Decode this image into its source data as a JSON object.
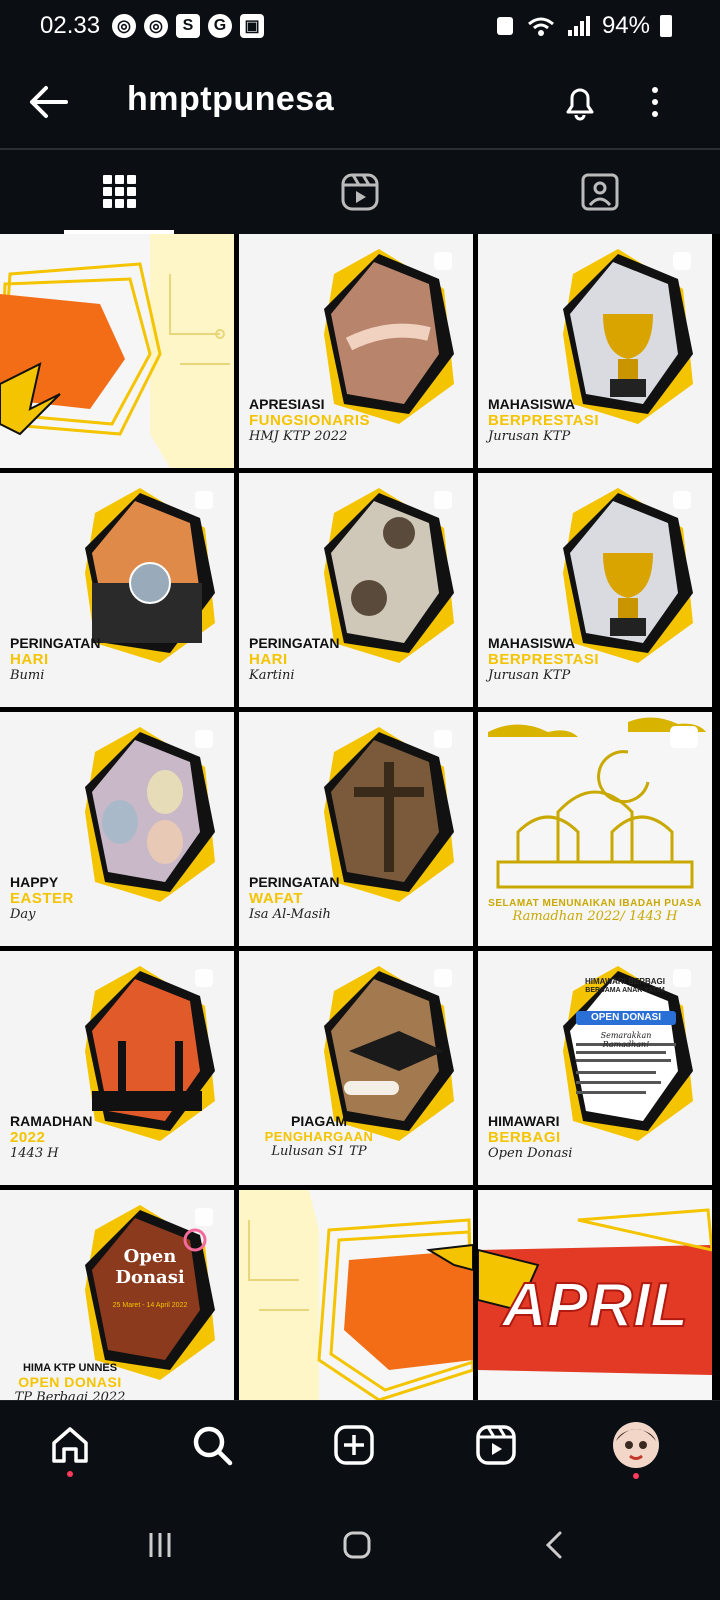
{
  "status": {
    "time": "02.33",
    "battery": "94%"
  },
  "header": {
    "title": "hmptpunesa"
  },
  "tiles": [
    {
      "line1": "",
      "line2": "",
      "line3": ""
    },
    {
      "line1": "APRESIASI",
      "line2": "FUNGSIONARIS",
      "line3": "HMJ KTP 2022"
    },
    {
      "line1": "MAHASISWA",
      "line2": "BERPRESTASI",
      "line3": "Jurusan KTP"
    },
    {
      "line1": "PERINGATAN",
      "line2": "HARI",
      "line3": "Bumi"
    },
    {
      "line1": "PERINGATAN",
      "line2": "HARI",
      "line3": "Kartini"
    },
    {
      "line1": "MAHASISWA",
      "line2": "BERPRESTASI",
      "line3": "Jurusan KTP"
    },
    {
      "line1": "HAPPY",
      "line2": "EASTER",
      "line3": "Day"
    },
    {
      "line1": "PERINGATAN",
      "line2": "WAFAT",
      "line3": "Isa Al-Masih"
    },
    {
      "line1": "",
      "line2": "SELAMAT MENUNAIKAN IBADAH PUASA",
      "line3": "Ramadhan 2022/ 1443 H"
    },
    {
      "line1": "RAMADHAN",
      "line2": "2022",
      "line3": "1443 H"
    },
    {
      "line1": "PIAGAM",
      "line2": "PENGHARGAAN",
      "line3": "Lulusan S1 TP"
    },
    {
      "line1": "HIMAWARI",
      "line2": "BERBAGI",
      "line3": "Open Donasi"
    },
    {
      "line1": "HIMA KTP UNNES",
      "line2": "OPEN DONASI",
      "line3": "TP Berbagi 2022"
    },
    {
      "line1": "",
      "line2": "",
      "line3": ""
    },
    {
      "line1": "",
      "line2": "APRIL",
      "line3": ""
    }
  ],
  "open_donasi_poster": {
    "title": "Open Donasi",
    "dates": "25 Maret - 14 April 2022"
  },
  "himawari_poster": {
    "header": "HIMAWARI BERBAGI",
    "sub": "BERSAMA ANAK YATIM",
    "banner": "OPEN DONASI",
    "tagline": "Semarakkan Ramadhan!"
  },
  "colors": {
    "accent": "#f4c400",
    "bg": "#0b0f14",
    "red": "#ff3b5c"
  }
}
